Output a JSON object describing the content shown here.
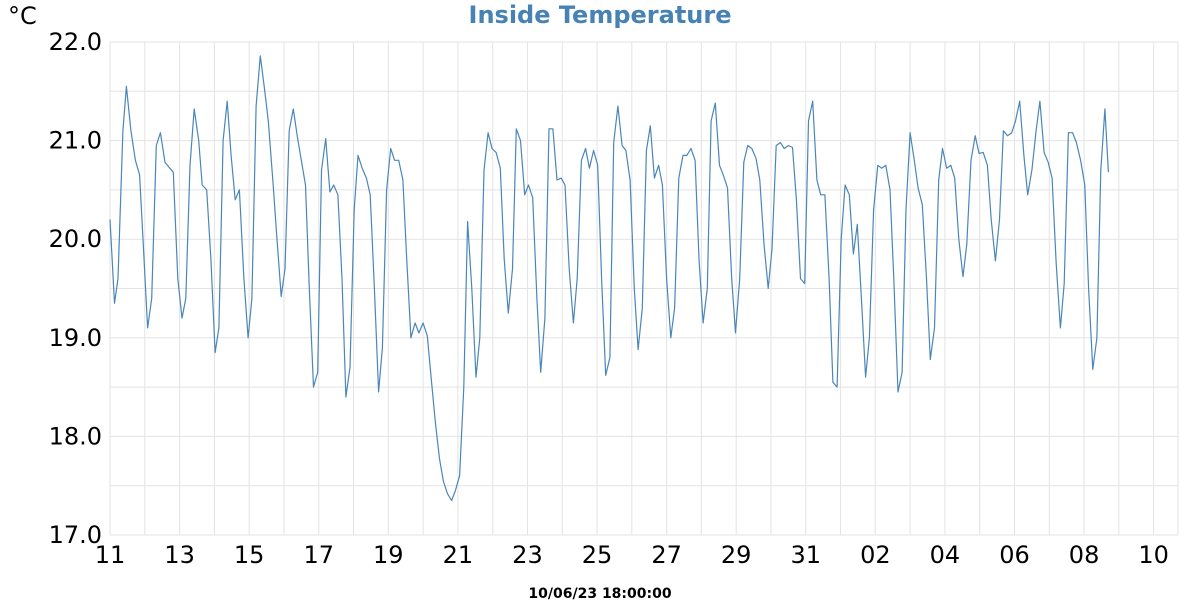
{
  "chart_data": {
    "type": "line",
    "title": "Inside Temperature",
    "unit_label": "°C",
    "footer": "10/06/23 18:00:00",
    "ylim": [
      17.0,
      22.0
    ],
    "yticks": [
      "17.0",
      "18.0",
      "19.0",
      "20.0",
      "21.0",
      "22.0"
    ],
    "xlim": [
      0,
      30.7
    ],
    "xticks": [
      {
        "x": 0,
        "label": "11"
      },
      {
        "x": 2,
        "label": "13"
      },
      {
        "x": 4,
        "label": "15"
      },
      {
        "x": 6,
        "label": "17"
      },
      {
        "x": 8,
        "label": "19"
      },
      {
        "x": 10,
        "label": "21"
      },
      {
        "x": 12,
        "label": "23"
      },
      {
        "x": 14,
        "label": "25"
      },
      {
        "x": 16,
        "label": "27"
      },
      {
        "x": 18,
        "label": "29"
      },
      {
        "x": 20,
        "label": "31"
      },
      {
        "x": 22,
        "label": "02"
      },
      {
        "x": 24,
        "label": "04"
      },
      {
        "x": 26,
        "label": "06"
      },
      {
        "x": 28,
        "label": "08"
      },
      {
        "x": 30,
        "label": "10"
      }
    ],
    "grid": true,
    "colors": {
      "line": "#4a86b8",
      "title": "#4682b4",
      "grid": "#e3e3e3"
    },
    "series": [
      {
        "values": [
          [
            0.0,
            20.2
          ],
          [
            0.13,
            19.35
          ],
          [
            0.23,
            19.6
          ],
          [
            0.37,
            21.1
          ],
          [
            0.47,
            21.55
          ],
          [
            0.6,
            21.1
          ],
          [
            0.73,
            20.8
          ],
          [
            0.85,
            20.65
          ],
          [
            0.95,
            20.0
          ],
          [
            1.08,
            19.1
          ],
          [
            1.2,
            19.4
          ],
          [
            1.33,
            20.95
          ],
          [
            1.45,
            21.08
          ],
          [
            1.58,
            20.78
          ],
          [
            1.72,
            20.72
          ],
          [
            1.82,
            20.68
          ],
          [
            1.95,
            19.6
          ],
          [
            2.07,
            19.2
          ],
          [
            2.18,
            19.4
          ],
          [
            2.3,
            20.75
          ],
          [
            2.42,
            21.32
          ],
          [
            2.55,
            21.0
          ],
          [
            2.65,
            20.55
          ],
          [
            2.78,
            20.5
          ],
          [
            2.9,
            19.8
          ],
          [
            3.02,
            18.85
          ],
          [
            3.13,
            19.1
          ],
          [
            3.25,
            21.0
          ],
          [
            3.37,
            21.4
          ],
          [
            3.48,
            20.85
          ],
          [
            3.6,
            20.4
          ],
          [
            3.72,
            20.5
          ],
          [
            3.85,
            19.6
          ],
          [
            3.97,
            19.0
          ],
          [
            4.08,
            19.4
          ],
          [
            4.2,
            21.35
          ],
          [
            4.32,
            21.86
          ],
          [
            4.45,
            21.5
          ],
          [
            4.55,
            21.2
          ],
          [
            4.68,
            20.6
          ],
          [
            4.8,
            20.0
          ],
          [
            4.92,
            19.42
          ],
          [
            5.03,
            19.7
          ],
          [
            5.15,
            21.1
          ],
          [
            5.27,
            21.32
          ],
          [
            5.38,
            21.05
          ],
          [
            5.5,
            20.8
          ],
          [
            5.62,
            20.55
          ],
          [
            5.73,
            19.5
          ],
          [
            5.85,
            18.5
          ],
          [
            5.97,
            18.65
          ],
          [
            6.08,
            20.7
          ],
          [
            6.2,
            21.02
          ],
          [
            6.32,
            20.48
          ],
          [
            6.43,
            20.55
          ],
          [
            6.55,
            20.45
          ],
          [
            6.67,
            19.6
          ],
          [
            6.78,
            18.4
          ],
          [
            6.9,
            18.7
          ],
          [
            7.02,
            20.3
          ],
          [
            7.13,
            20.85
          ],
          [
            7.25,
            20.72
          ],
          [
            7.37,
            20.62
          ],
          [
            7.48,
            20.45
          ],
          [
            7.6,
            19.5
          ],
          [
            7.72,
            18.45
          ],
          [
            7.83,
            18.9
          ],
          [
            7.95,
            20.5
          ],
          [
            8.07,
            20.92
          ],
          [
            8.18,
            20.8
          ],
          [
            8.3,
            20.8
          ],
          [
            8.42,
            20.6
          ],
          [
            8.53,
            19.8
          ],
          [
            8.65,
            19.0
          ],
          [
            8.77,
            19.15
          ],
          [
            8.88,
            19.05
          ],
          [
            9.0,
            19.15
          ],
          [
            9.12,
            19.02
          ],
          [
            9.23,
            18.6
          ],
          [
            9.35,
            18.15
          ],
          [
            9.47,
            17.78
          ],
          [
            9.58,
            17.55
          ],
          [
            9.7,
            17.42
          ],
          [
            9.82,
            17.35
          ],
          [
            9.93,
            17.45
          ],
          [
            10.05,
            17.6
          ],
          [
            10.17,
            18.5
          ],
          [
            10.28,
            20.18
          ],
          [
            10.4,
            19.5
          ],
          [
            10.52,
            18.6
          ],
          [
            10.63,
            19.0
          ],
          [
            10.75,
            20.7
          ],
          [
            10.87,
            21.08
          ],
          [
            10.98,
            20.92
          ],
          [
            11.1,
            20.88
          ],
          [
            11.22,
            20.72
          ],
          [
            11.33,
            19.8
          ],
          [
            11.45,
            19.25
          ],
          [
            11.57,
            19.7
          ],
          [
            11.68,
            21.12
          ],
          [
            11.8,
            21.0
          ],
          [
            11.92,
            20.45
          ],
          [
            12.03,
            20.55
          ],
          [
            12.15,
            20.42
          ],
          [
            12.27,
            19.4
          ],
          [
            12.38,
            18.65
          ],
          [
            12.5,
            19.2
          ],
          [
            12.62,
            21.12
          ],
          [
            12.73,
            21.12
          ],
          [
            12.85,
            20.6
          ],
          [
            12.97,
            20.62
          ],
          [
            13.08,
            20.55
          ],
          [
            13.2,
            19.7
          ],
          [
            13.32,
            19.15
          ],
          [
            13.43,
            19.6
          ],
          [
            13.55,
            20.8
          ],
          [
            13.67,
            20.92
          ],
          [
            13.78,
            20.72
          ],
          [
            13.9,
            20.9
          ],
          [
            14.02,
            20.75
          ],
          [
            14.13,
            19.6
          ],
          [
            14.25,
            18.62
          ],
          [
            14.37,
            18.8
          ],
          [
            14.48,
            20.98
          ],
          [
            14.6,
            21.35
          ],
          [
            14.72,
            20.95
          ],
          [
            14.83,
            20.9
          ],
          [
            14.95,
            20.6
          ],
          [
            15.07,
            19.5
          ],
          [
            15.18,
            18.88
          ],
          [
            15.3,
            19.3
          ],
          [
            15.42,
            20.9
          ],
          [
            15.53,
            21.15
          ],
          [
            15.65,
            20.62
          ],
          [
            15.77,
            20.75
          ],
          [
            15.88,
            20.55
          ],
          [
            16.0,
            19.6
          ],
          [
            16.12,
            19.0
          ],
          [
            16.23,
            19.3
          ],
          [
            16.35,
            20.62
          ],
          [
            16.47,
            20.85
          ],
          [
            16.58,
            20.85
          ],
          [
            16.7,
            20.92
          ],
          [
            16.82,
            20.8
          ],
          [
            16.93,
            19.8
          ],
          [
            17.05,
            19.15
          ],
          [
            17.17,
            19.5
          ],
          [
            17.28,
            21.2
          ],
          [
            17.4,
            21.38
          ],
          [
            17.52,
            20.75
          ],
          [
            17.63,
            20.65
          ],
          [
            17.75,
            20.52
          ],
          [
            17.87,
            19.6
          ],
          [
            17.98,
            19.05
          ],
          [
            18.1,
            19.6
          ],
          [
            18.22,
            20.78
          ],
          [
            18.33,
            20.95
          ],
          [
            18.45,
            20.92
          ],
          [
            18.57,
            20.82
          ],
          [
            18.68,
            20.6
          ],
          [
            18.8,
            19.95
          ],
          [
            18.92,
            19.5
          ],
          [
            19.03,
            19.9
          ],
          [
            19.15,
            20.95
          ],
          [
            19.27,
            20.98
          ],
          [
            19.38,
            20.92
          ],
          [
            19.5,
            20.95
          ],
          [
            19.62,
            20.93
          ],
          [
            19.73,
            20.4
          ],
          [
            19.85,
            19.6
          ],
          [
            19.97,
            19.55
          ],
          [
            20.08,
            21.2
          ],
          [
            20.2,
            21.4
          ],
          [
            20.32,
            20.6
          ],
          [
            20.43,
            20.45
          ],
          [
            20.55,
            20.45
          ],
          [
            20.67,
            19.6
          ],
          [
            20.78,
            18.55
          ],
          [
            20.9,
            18.5
          ],
          [
            21.02,
            20.0
          ],
          [
            21.13,
            20.55
          ],
          [
            21.25,
            20.45
          ],
          [
            21.37,
            19.85
          ],
          [
            21.48,
            20.15
          ],
          [
            21.6,
            19.4
          ],
          [
            21.72,
            18.6
          ],
          [
            21.83,
            19.0
          ],
          [
            21.95,
            20.3
          ],
          [
            22.07,
            20.75
          ],
          [
            22.18,
            20.72
          ],
          [
            22.3,
            20.75
          ],
          [
            22.42,
            20.5
          ],
          [
            22.53,
            19.6
          ],
          [
            22.65,
            18.45
          ],
          [
            22.77,
            18.65
          ],
          [
            22.88,
            20.3
          ],
          [
            23.0,
            21.08
          ],
          [
            23.12,
            20.8
          ],
          [
            23.23,
            20.52
          ],
          [
            23.35,
            20.35
          ],
          [
            23.47,
            19.6
          ],
          [
            23.58,
            18.78
          ],
          [
            23.7,
            19.1
          ],
          [
            23.82,
            20.6
          ],
          [
            23.93,
            20.92
          ],
          [
            24.05,
            20.72
          ],
          [
            24.17,
            20.75
          ],
          [
            24.28,
            20.62
          ],
          [
            24.4,
            20.0
          ],
          [
            24.52,
            19.62
          ],
          [
            24.63,
            19.95
          ],
          [
            24.75,
            20.8
          ],
          [
            24.87,
            21.05
          ],
          [
            24.98,
            20.87
          ],
          [
            25.1,
            20.88
          ],
          [
            25.22,
            20.75
          ],
          [
            25.33,
            20.2
          ],
          [
            25.45,
            19.78
          ],
          [
            25.57,
            20.2
          ],
          [
            25.68,
            21.1
          ],
          [
            25.8,
            21.05
          ],
          [
            25.92,
            21.08
          ],
          [
            26.03,
            21.2
          ],
          [
            26.15,
            21.4
          ],
          [
            26.27,
            20.85
          ],
          [
            26.38,
            20.45
          ],
          [
            26.5,
            20.7
          ],
          [
            26.62,
            21.1
          ],
          [
            26.73,
            21.4
          ],
          [
            26.85,
            20.88
          ],
          [
            26.97,
            20.78
          ],
          [
            27.08,
            20.62
          ],
          [
            27.2,
            19.75
          ],
          [
            27.32,
            19.1
          ],
          [
            27.43,
            19.55
          ],
          [
            27.55,
            21.08
          ],
          [
            27.67,
            21.08
          ],
          [
            27.78,
            20.98
          ],
          [
            27.9,
            20.8
          ],
          [
            28.02,
            20.55
          ],
          [
            28.13,
            19.5
          ],
          [
            28.25,
            18.68
          ],
          [
            28.37,
            19.0
          ],
          [
            28.48,
            20.7
          ],
          [
            28.6,
            21.32
          ],
          [
            28.7,
            20.68
          ]
        ]
      }
    ]
  }
}
